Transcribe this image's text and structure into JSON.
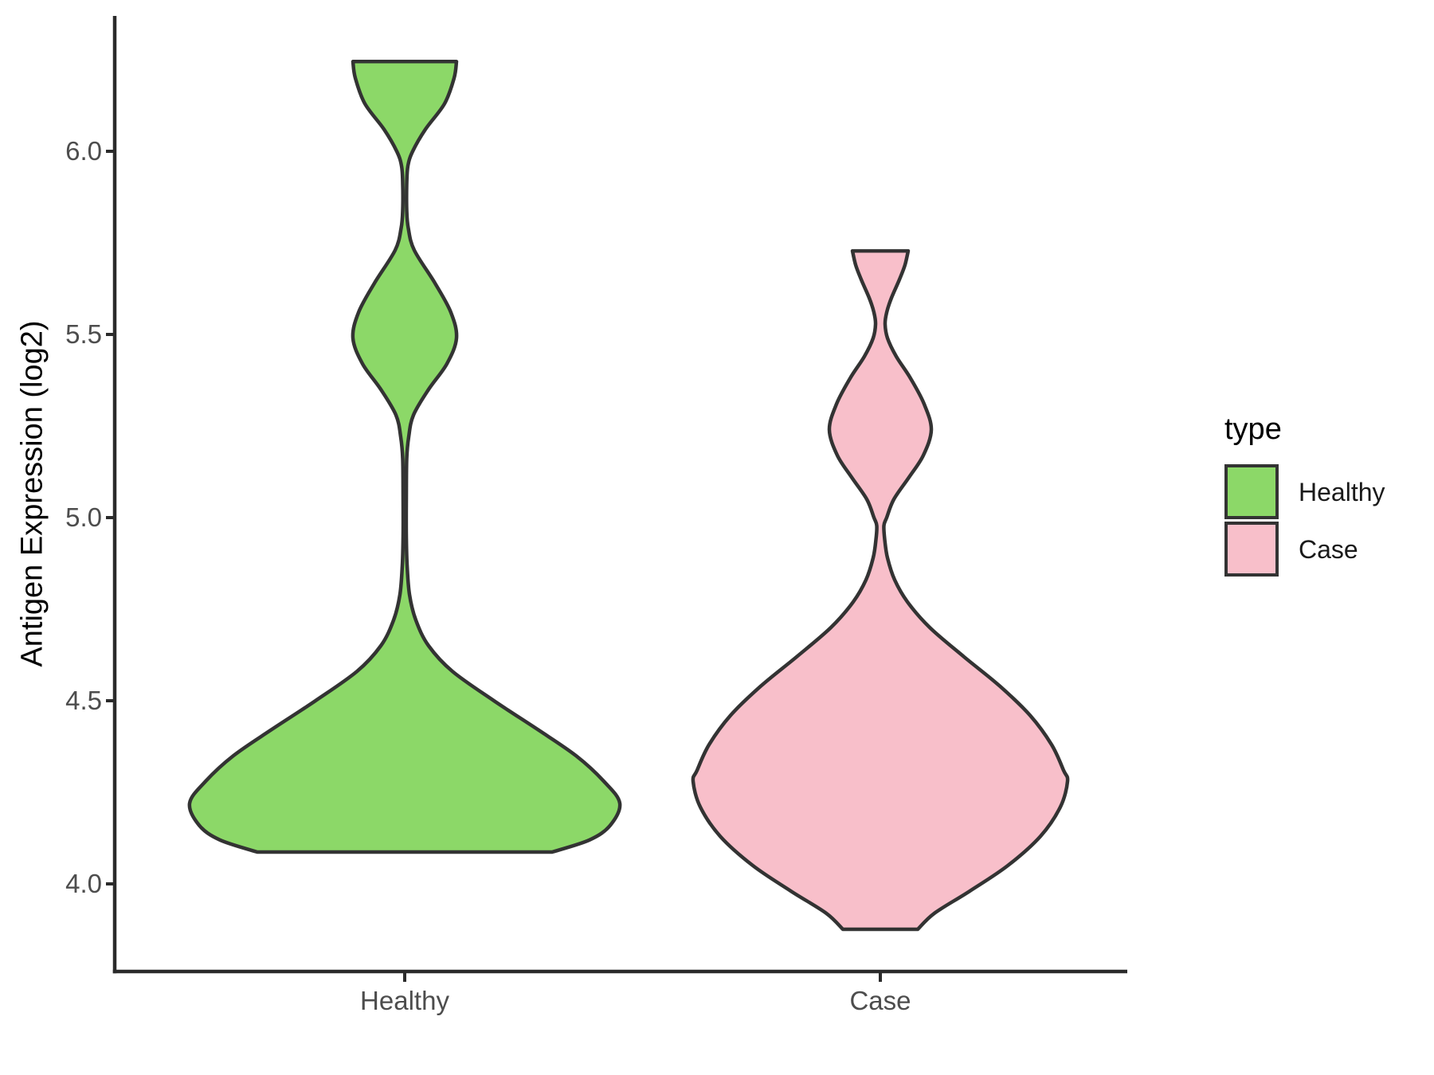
{
  "figure": {
    "background": "#ffffff"
  },
  "y_axis": {
    "title": "Antigen Expression (log2)",
    "tick_labels": [
      "6.0",
      "5.5",
      "5.0",
      "4.5",
      "4.0"
    ],
    "tick_values": [
      6.0,
      5.5,
      5.0,
      4.5,
      4.0
    ]
  },
  "x_axis": {
    "category_labels": [
      "Healthy",
      "Case"
    ]
  },
  "legend": {
    "title": "type",
    "entries": [
      {
        "label": "Healthy",
        "color": "#8cd868"
      },
      {
        "label": "Case",
        "color": "#f8bfca"
      }
    ]
  },
  "style": {
    "outline_color": "#333333",
    "axis_color": "#2b2b2b",
    "tick_label_color": "#4d4d4d",
    "axis_title_color": "#000000",
    "legend_text_color": "#1a1a1a"
  },
  "chart_data": {
    "type": "violin",
    "title": "",
    "xlabel": "",
    "ylabel": "Antigen Expression (log2)",
    "categories": [
      "Healthy",
      "Case"
    ],
    "y_ticks": [
      4.0,
      4.5,
      5.0,
      5.5,
      6.0
    ],
    "ylim": [
      3.75,
      6.35
    ],
    "grid": false,
    "legend_position": "right",
    "legend_title": "type",
    "series": [
      {
        "name": "Healthy",
        "fill": "#8cd868",
        "outline": "#333333",
        "data_range": [
          4.09,
          6.25
        ],
        "modes": [
          4.22,
          5.49,
          6.25
        ],
        "profile_value_halfwidth": [
          [
            6.245,
            65
          ],
          [
            6.2,
            62
          ],
          [
            6.13,
            50
          ],
          [
            6.06,
            26
          ],
          [
            6.0,
            10
          ],
          [
            5.96,
            4
          ],
          [
            5.91,
            2.5
          ],
          [
            5.84,
            2.5
          ],
          [
            5.79,
            4.5
          ],
          [
            5.73,
            12
          ],
          [
            5.64,
            38
          ],
          [
            5.56,
            58
          ],
          [
            5.49,
            65
          ],
          [
            5.42,
            53
          ],
          [
            5.35,
            30
          ],
          [
            5.28,
            11
          ],
          [
            5.22,
            5
          ],
          [
            5.16,
            2.5
          ],
          [
            5.05,
            2
          ],
          [
            4.95,
            2
          ],
          [
            4.87,
            3
          ],
          [
            4.79,
            6
          ],
          [
            4.72,
            14
          ],
          [
            4.65,
            30
          ],
          [
            4.58,
            60
          ],
          [
            4.5,
            112
          ],
          [
            4.42,
            168
          ],
          [
            4.35,
            215
          ],
          [
            4.28,
            250
          ],
          [
            4.22,
            270
          ],
          [
            4.16,
            258
          ],
          [
            4.12,
            232
          ],
          [
            4.087,
            185
          ]
        ]
      },
      {
        "name": "Case",
        "fill": "#f8bfca",
        "outline": "#333333",
        "data_range": [
          3.88,
          5.73
        ],
        "modes": [
          4.28,
          5.24,
          5.73
        ],
        "profile_value_halfwidth": [
          [
            5.728,
            35
          ],
          [
            5.69,
            31
          ],
          [
            5.65,
            24
          ],
          [
            5.6,
            14
          ],
          [
            5.56,
            8
          ],
          [
            5.528,
            6
          ],
          [
            5.49,
            9
          ],
          [
            5.44,
            20
          ],
          [
            5.38,
            38
          ],
          [
            5.31,
            55
          ],
          [
            5.24,
            64
          ],
          [
            5.17,
            54
          ],
          [
            5.11,
            36
          ],
          [
            5.05,
            17
          ],
          [
            5.0,
            8
          ],
          [
            4.978,
            4.5
          ],
          [
            4.94,
            5.5
          ],
          [
            4.89,
            9
          ],
          [
            4.83,
            18
          ],
          [
            4.77,
            34
          ],
          [
            4.7,
            62
          ],
          [
            4.62,
            105
          ],
          [
            4.54,
            150
          ],
          [
            4.46,
            188
          ],
          [
            4.38,
            215
          ],
          [
            4.31,
            230
          ],
          [
            4.28,
            235
          ],
          [
            4.21,
            226
          ],
          [
            4.13,
            201
          ],
          [
            4.05,
            160
          ],
          [
            3.98,
            112
          ],
          [
            3.92,
            68
          ],
          [
            3.876,
            47
          ]
        ]
      }
    ]
  }
}
